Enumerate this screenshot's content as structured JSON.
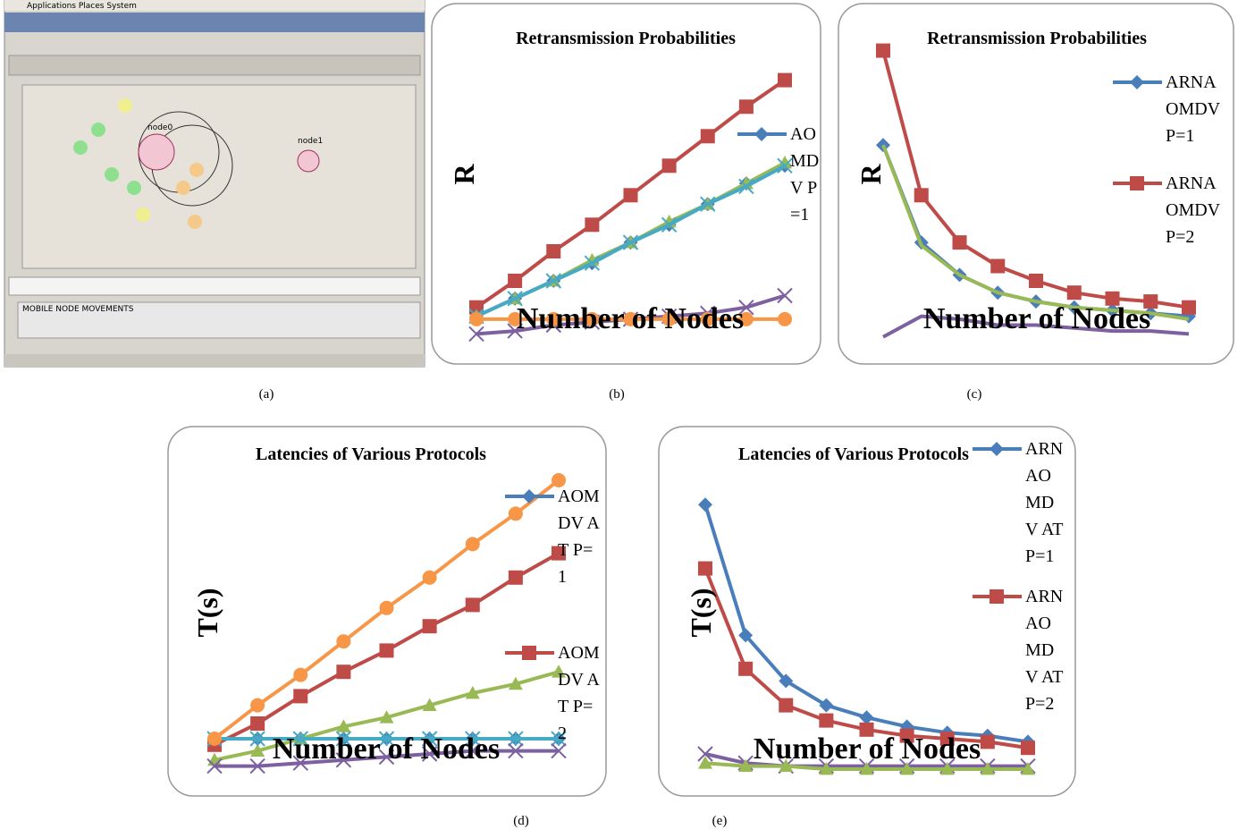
{
  "screenshot": {
    "menu": "Applications Places System",
    "nodes": [
      "node0",
      "node1"
    ],
    "panel": "MOBILE NODE MOVEMENTS"
  },
  "captions": [
    "(a)",
    "(b)",
    "(c)",
    "(d)",
    "(e)"
  ],
  "chart_data": [
    {
      "type": "line",
      "title": "Retransmission Probabilities",
      "ylabel": "R",
      "xlabel": "Number of Nodes",
      "categories": [
        null,
        null,
        null,
        null,
        null,
        null,
        null,
        null,
        null
      ],
      "ylim": [
        0,
        100
      ],
      "legend": "top-right",
      "series": [
        {
          "color": "#be4b48",
          "marker": "square",
          "values": [
            11,
            20,
            30,
            39,
            49,
            59,
            69,
            79,
            88
          ]
        },
        {
          "name": "AOMDV P=1",
          "color": "#4a7ebb",
          "marker": "diamond",
          "values": [
            8,
            14,
            20,
            26,
            33,
            39,
            46,
            53,
            59
          ]
        },
        {
          "color": "#98b954",
          "marker": "triangle",
          "values": [
            8,
            14,
            20,
            27,
            33,
            40,
            46,
            53,
            60
          ]
        },
        {
          "color": "#46aac5",
          "marker": "x",
          "values": [
            8,
            14,
            20,
            26,
            33,
            39,
            46,
            52,
            59
          ]
        },
        {
          "color": "#7d60a0",
          "marker": "x",
          "values": [
            2,
            3,
            5,
            6,
            7,
            8,
            9,
            11,
            15
          ]
        },
        {
          "color": "#f79646",
          "marker": "circle",
          "values": [
            7,
            7,
            7,
            7,
            7,
            7,
            7,
            7,
            7
          ]
        }
      ]
    },
    {
      "type": "line",
      "title": "Retransmission Probabilities",
      "ylabel": "R",
      "xlabel": "Number of Nodes",
      "categories": [
        null,
        null,
        null,
        null,
        null,
        null,
        null,
        null,
        null
      ],
      "ylim": [
        0,
        100
      ],
      "legend": "top-right",
      "series": [
        {
          "name": "ARNAOMDV P=1",
          "color": "#4a7ebb",
          "marker": "diamond",
          "values": [
            66,
            33,
            22,
            16,
            13,
            11,
            10,
            9,
            8
          ]
        },
        {
          "name": "ARNAOMDV P=2",
          "color": "#be4b48",
          "marker": "square",
          "values": [
            98,
            49,
            33,
            25,
            20,
            16,
            14,
            13,
            11
          ]
        },
        {
          "color": "#98b954",
          "marker": "none",
          "values": [
            66,
            32,
            22,
            16,
            13,
            11,
            10,
            9,
            7
          ]
        },
        {
          "color": "#7d60a0",
          "marker": "none",
          "values": [
            1,
            8,
            7,
            5,
            5,
            4,
            3,
            3,
            2
          ]
        }
      ]
    },
    {
      "type": "line",
      "title": "Latencies of Various Protocols",
      "ylabel": "T(s)",
      "xlabel": "Number of Nodes",
      "categories": [
        null,
        null,
        null,
        null,
        null,
        null,
        null,
        null,
        null
      ],
      "ylim": [
        0,
        100
      ],
      "legend": "top-right",
      "series": [
        {
          "name": "AOMDV AT P=1",
          "color": "#4a7ebb",
          "marker": "diamond",
          "values": [
            10,
            10,
            10,
            10,
            10,
            10,
            10,
            10,
            10
          ]
        },
        {
          "name": "AOMDV AT P=2",
          "color": "#be4b48",
          "marker": "square",
          "values": [
            8,
            15,
            24,
            32,
            39,
            47,
            54,
            63,
            71
          ]
        },
        {
          "color": "#98b954",
          "marker": "triangle",
          "values": [
            3,
            6,
            10,
            14,
            17,
            21,
            25,
            28,
            32
          ]
        },
        {
          "color": "#46aac5",
          "marker": "star",
          "values": [
            10,
            10,
            10,
            10,
            10,
            10,
            10,
            10,
            10
          ]
        },
        {
          "color": "#7d60a0",
          "marker": "x",
          "values": [
            1,
            1,
            2,
            3,
            4,
            5,
            6,
            6,
            6
          ]
        },
        {
          "color": "#f79646",
          "marker": "circle",
          "values": [
            10,
            21,
            31,
            42,
            53,
            63,
            74,
            84,
            95
          ]
        }
      ]
    },
    {
      "type": "line",
      "title": "Latencies of Various Protocols",
      "ylabel": "T(s)",
      "xlabel": "Number of Nodes",
      "categories": [
        null,
        null,
        null,
        null,
        null,
        null,
        null,
        null,
        null
      ],
      "ylim": [
        0,
        100
      ],
      "legend": "top-right",
      "series": [
        {
          "name": "ARNAOMDV AT P=1",
          "color": "#4a7ebb",
          "marker": "diamond",
          "values": [
            87,
            44,
            29,
            21,
            17,
            14,
            12,
            11,
            9
          ]
        },
        {
          "name": "ARNAOMDV AT P=2",
          "color": "#be4b48",
          "marker": "square",
          "values": [
            66,
            33,
            21,
            16,
            13,
            11,
            10,
            9,
            7
          ]
        },
        {
          "color": "#7d60a0",
          "marker": "x",
          "values": [
            5,
            2,
            1,
            1,
            1,
            1,
            1,
            1,
            1
          ]
        },
        {
          "color": "#98b954",
          "marker": "triangle",
          "values": [
            2,
            1,
            1,
            0,
            0,
            0,
            0,
            0,
            0
          ]
        }
      ]
    }
  ]
}
